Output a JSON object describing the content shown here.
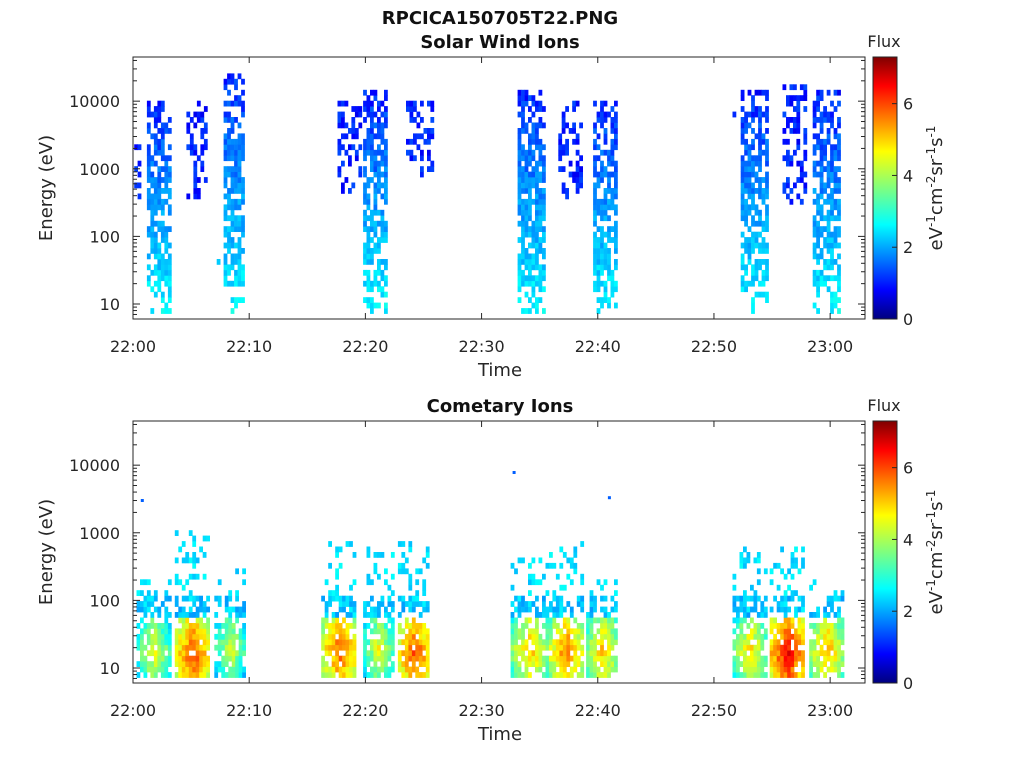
{
  "figure": {
    "title": "RPCICA150705T22.PNG"
  },
  "colormap": [
    "#00007f",
    "#0000ff",
    "#007fff",
    "#00ffff",
    "#7fff7f",
    "#ffff00",
    "#ff7f00",
    "#ff0000",
    "#7f0000"
  ],
  "chart_data": [
    {
      "type": "heatmap",
      "title": "Solar Wind Ions",
      "xlabel": "Time",
      "ylabel": "Energy (eV)",
      "x_ticks": [
        "22:00",
        "22:10",
        "22:20",
        "22:30",
        "22:40",
        "22:50",
        "23:00"
      ],
      "x_range_minutes": [
        0,
        63
      ],
      "y_scale": "log",
      "y_ticks": [
        "10",
        "100",
        "1000",
        "10000"
      ],
      "y_range": [
        6,
        45000
      ],
      "colorbar": {
        "title": "Flux",
        "label": "eV-1cm-2sr-1s-1",
        "range": [
          0,
          7.3
        ],
        "ticks": [
          "0",
          "2",
          "4",
          "6"
        ]
      },
      "bursts": [
        {
          "start": 0.1,
          "end": 0.6,
          "emin": 300,
          "emax": 4000,
          "flux": 0.9
        },
        {
          "start": 1.2,
          "end": 3.0,
          "emin": 7,
          "emax": 11000,
          "flux": 1.5
        },
        {
          "start": 4.6,
          "end": 6.3,
          "emin": 350,
          "emax": 11000,
          "flux": 1.1
        },
        {
          "start": 7.2,
          "end": 7.4,
          "emin": 40,
          "emax": 50,
          "flux": 2.8
        },
        {
          "start": 7.8,
          "end": 9.5,
          "emin": 7,
          "emax": 28000,
          "flux": 1.5
        },
        {
          "start": 17.6,
          "end": 19.5,
          "emin": 450,
          "emax": 10000,
          "flux": 1.0
        },
        {
          "start": 19.8,
          "end": 21.8,
          "emin": 7,
          "emax": 14000,
          "flux": 1.5
        },
        {
          "start": 23.5,
          "end": 25.7,
          "emin": 700,
          "emax": 10000,
          "flux": 1.0
        },
        {
          "start": 33.1,
          "end": 35.2,
          "emin": 7,
          "emax": 15000,
          "flux": 1.5
        },
        {
          "start": 36.6,
          "end": 38.6,
          "emin": 350,
          "emax": 10000,
          "flux": 1.0
        },
        {
          "start": 39.6,
          "end": 41.6,
          "emin": 7,
          "emax": 11000,
          "flux": 1.5
        },
        {
          "start": 51.6,
          "end": 51.8,
          "emin": 5500,
          "emax": 6500,
          "flux": 1.2
        },
        {
          "start": 52.3,
          "end": 54.4,
          "emin": 7,
          "emax": 14000,
          "flux": 1.5
        },
        {
          "start": 55.9,
          "end": 57.9,
          "emin": 280,
          "emax": 17000,
          "flux": 1.0
        },
        {
          "start": 58.5,
          "end": 60.6,
          "emin": 7,
          "emax": 14000,
          "flux": 1.5
        }
      ]
    },
    {
      "type": "heatmap",
      "title": "Cometary Ions",
      "xlabel": "Time",
      "ylabel": "Energy (eV)",
      "x_ticks": [
        "22:00",
        "22:10",
        "22:20",
        "22:30",
        "22:40",
        "22:50",
        "23:00"
      ],
      "x_range_minutes": [
        0,
        63
      ],
      "y_scale": "log",
      "y_ticks": [
        "10",
        "100",
        "1000",
        "10000"
      ],
      "y_range": [
        6,
        45000
      ],
      "colorbar": {
        "title": "Flux",
        "label": "eV-1cm-2sr-1s-1",
        "range": [
          0,
          7.3
        ],
        "ticks": [
          "0",
          "2",
          "4",
          "6"
        ]
      },
      "bursts": [
        {
          "start": 0.3,
          "end": 3.0,
          "emin": 7,
          "emax": 200,
          "peak": 4.6,
          "peak_e": 18
        },
        {
          "start": 3.6,
          "end": 6.4,
          "emin": 7,
          "emax": 1200,
          "peak": 6.2,
          "peak_e": 15
        },
        {
          "start": 7.0,
          "end": 9.6,
          "emin": 7,
          "emax": 350,
          "peak": 4.4,
          "peak_e": 20
        },
        {
          "start": 16.2,
          "end": 19.2,
          "emin": 7,
          "emax": 800,
          "peak": 6.0,
          "peak_e": 18
        },
        {
          "start": 19.8,
          "end": 22.3,
          "emin": 7,
          "emax": 600,
          "peak": 4.6,
          "peak_e": 20
        },
        {
          "start": 22.8,
          "end": 25.5,
          "emin": 7,
          "emax": 700,
          "peak": 6.2,
          "peak_e": 16
        },
        {
          "start": 32.5,
          "end": 35.6,
          "emin": 7,
          "emax": 400,
          "peak": 5.2,
          "peak_e": 18
        },
        {
          "start": 35.8,
          "end": 38.6,
          "emin": 7,
          "emax": 900,
          "peak": 5.8,
          "peak_e": 17
        },
        {
          "start": 39.0,
          "end": 41.6,
          "emin": 7,
          "emax": 200,
          "peak": 5.2,
          "peak_e": 18
        },
        {
          "start": 51.6,
          "end": 54.4,
          "emin": 7,
          "emax": 600,
          "peak": 5.0,
          "peak_e": 18
        },
        {
          "start": 54.8,
          "end": 57.7,
          "emin": 7,
          "emax": 650,
          "peak": 6.6,
          "peak_e": 16
        },
        {
          "start": 58.2,
          "end": 61.0,
          "emin": 7,
          "emax": 200,
          "peak": 5.4,
          "peak_e": 18
        }
      ],
      "isolated_points": [
        {
          "t": 0.8,
          "e": 3000,
          "flux": 1.4
        },
        {
          "t": 32.8,
          "e": 7800,
          "flux": 1.4
        },
        {
          "t": 41.0,
          "e": 3300,
          "flux": 1.4
        }
      ]
    }
  ]
}
